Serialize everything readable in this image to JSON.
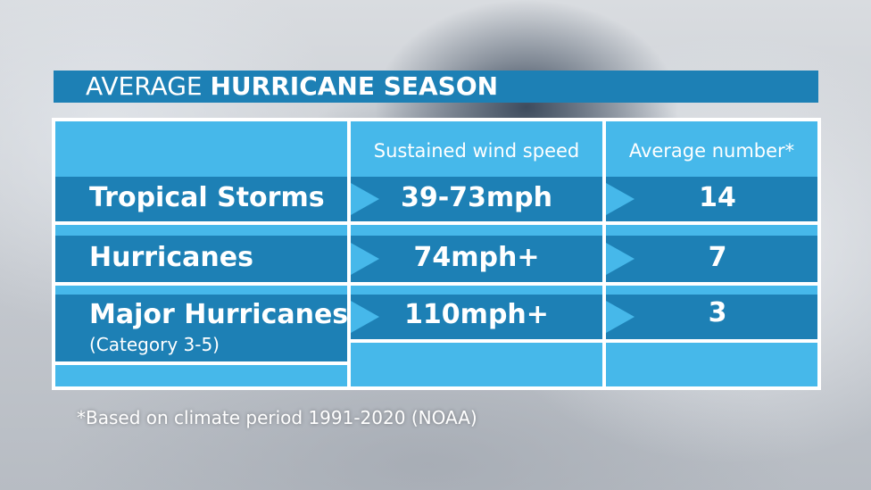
{
  "title": {
    "normal": "AVERAGE ",
    "bold": "HURRICANE SEASON"
  },
  "columns": {
    "wind": "Sustained wind speed",
    "number": "Average number*"
  },
  "rows": [
    {
      "label": "Tropical Storms",
      "sub": "",
      "wind": "39-73mph",
      "number": "14"
    },
    {
      "label": "Hurricanes",
      "sub": "",
      "wind": "74mph+",
      "number": "7"
    },
    {
      "label": "Major Hurricanes",
      "sub": "(Category 3-5)",
      "wind": "110mph+",
      "number": "3"
    }
  ],
  "footnote": "*Based on climate period 1991-2020 (NOAA)",
  "colors": {
    "dark_blue": "#1d80b5",
    "light_blue": "#46b8ea"
  }
}
